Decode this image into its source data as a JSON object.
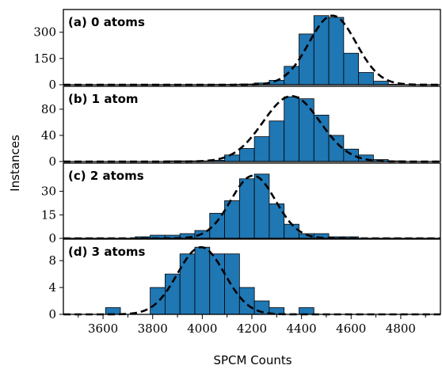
{
  "chart_data": {
    "type": "bar",
    "xlabel": "SPCM Counts",
    "ylabel": "Instances",
    "xlim": [
      3440,
      4960
    ],
    "bin_width": 60,
    "bar_color": "#1f77b4",
    "fit_color": "#000000",
    "fit_style": "dashed",
    "x_ticks": [
      3600,
      3800,
      4000,
      4200,
      4400,
      4600,
      4800
    ],
    "x_tick_labels": [
      "3600",
      "3800",
      "4000",
      "4200",
      "4400",
      "4600",
      "4800"
    ],
    "panels": [
      {
        "label": "(a) 0 atoms",
        "ylim": [
          0,
          430
        ],
        "y_ticks": [
          0,
          150,
          300
        ],
        "y_tick_labels": [
          "0",
          "150",
          "300"
        ],
        "bins": [
          {
            "x": 3820,
            "count": 1
          },
          {
            "x": 3880,
            "count": 1
          },
          {
            "x": 3940,
            "count": 1
          },
          {
            "x": 4000,
            "count": 1
          },
          {
            "x": 4060,
            "count": 2
          },
          {
            "x": 4120,
            "count": 2
          },
          {
            "x": 4180,
            "count": 4
          },
          {
            "x": 4240,
            "count": 10
          },
          {
            "x": 4300,
            "count": 25
          },
          {
            "x": 4360,
            "count": 105
          },
          {
            "x": 4420,
            "count": 290
          },
          {
            "x": 4480,
            "count": 395
          },
          {
            "x": 4540,
            "count": 385
          },
          {
            "x": 4600,
            "count": 180
          },
          {
            "x": 4660,
            "count": 70
          },
          {
            "x": 4720,
            "count": 20
          },
          {
            "x": 4780,
            "count": 3
          },
          {
            "x": 4840,
            "count": 1
          }
        ],
        "fit": {
          "mean": 4525,
          "sigma": 95,
          "amplitude": 395
        }
      },
      {
        "label": "(b) 1 atom",
        "ylim": [
          0,
          115
        ],
        "y_ticks": [
          0,
          40,
          80
        ],
        "y_tick_labels": [
          "0",
          "40",
          "80"
        ],
        "bins": [
          {
            "x": 3880,
            "count": 1
          },
          {
            "x": 3940,
            "count": 1
          },
          {
            "x": 4000,
            "count": 1
          },
          {
            "x": 4060,
            "count": 2
          },
          {
            "x": 4120,
            "count": 10
          },
          {
            "x": 4180,
            "count": 20
          },
          {
            "x": 4240,
            "count": 38
          },
          {
            "x": 4300,
            "count": 62
          },
          {
            "x": 4360,
            "count": 99
          },
          {
            "x": 4420,
            "count": 96
          },
          {
            "x": 4480,
            "count": 71
          },
          {
            "x": 4540,
            "count": 40
          },
          {
            "x": 4600,
            "count": 19
          },
          {
            "x": 4660,
            "count": 10
          },
          {
            "x": 4720,
            "count": 3
          },
          {
            "x": 4780,
            "count": 1
          }
        ],
        "fit": {
          "mean": 4360,
          "sigma": 115,
          "amplitude": 100
        }
      },
      {
        "label": "(c) 2 atoms",
        "ylim": [
          0,
          48
        ],
        "y_ticks": [
          0,
          15,
          30
        ],
        "y_tick_labels": [
          "0",
          "15",
          "30"
        ],
        "bins": [
          {
            "x": 3760,
            "count": 1
          },
          {
            "x": 3820,
            "count": 2
          },
          {
            "x": 3880,
            "count": 2
          },
          {
            "x": 3940,
            "count": 3
          },
          {
            "x": 4000,
            "count": 5
          },
          {
            "x": 4060,
            "count": 16
          },
          {
            "x": 4120,
            "count": 24
          },
          {
            "x": 4180,
            "count": 38
          },
          {
            "x": 4240,
            "count": 41
          },
          {
            "x": 4300,
            "count": 22
          },
          {
            "x": 4360,
            "count": 9
          },
          {
            "x": 4420,
            "count": 3
          },
          {
            "x": 4480,
            "count": 3
          },
          {
            "x": 4540,
            "count": 1
          },
          {
            "x": 4600,
            "count": 1
          }
        ],
        "fit": {
          "mean": 4205,
          "sigma": 90,
          "amplitude": 40
        }
      },
      {
        "label": "(d) 3 atoms",
        "ylim": [
          0,
          11.2
        ],
        "y_ticks": [
          0,
          4,
          8
        ],
        "y_tick_labels": [
          "0",
          "4",
          "8"
        ],
        "bins": [
          {
            "x": 3640,
            "count": 1
          },
          {
            "x": 3820,
            "count": 4
          },
          {
            "x": 3880,
            "count": 6
          },
          {
            "x": 3940,
            "count": 9
          },
          {
            "x": 4000,
            "count": 10
          },
          {
            "x": 4060,
            "count": 9
          },
          {
            "x": 4120,
            "count": 9
          },
          {
            "x": 4180,
            "count": 4
          },
          {
            "x": 4240,
            "count": 2
          },
          {
            "x": 4300,
            "count": 1
          },
          {
            "x": 4420,
            "count": 1
          }
        ],
        "fit": {
          "mean": 3995,
          "sigma": 95,
          "amplitude": 10
        }
      }
    ]
  }
}
